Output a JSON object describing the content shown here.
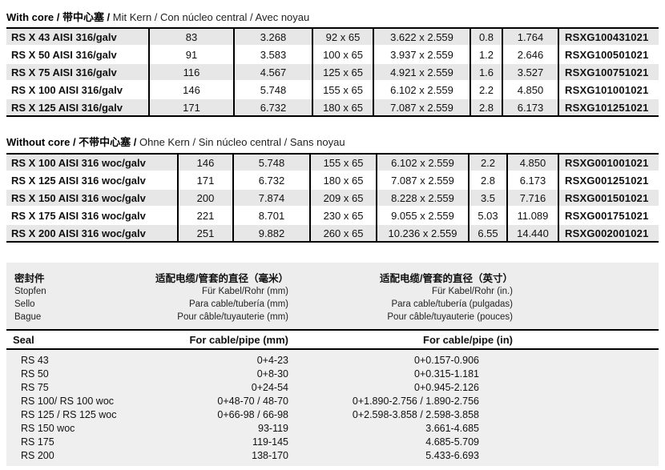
{
  "with_core": {
    "title_parts": [
      "With core",
      " / 带中心塞 / ",
      "Mit Kern / Con núcleo central / Avec noyau"
    ],
    "rows": [
      [
        "RS X 43 AISI 316/galv",
        "83",
        "3.268",
        "92 x 65",
        "3.622 x 2.559",
        "0.8",
        "1.764",
        "RSXG100431021"
      ],
      [
        "RS X 50 AISI 316/galv",
        "91",
        "3.583",
        "100 x 65",
        "3.937 x 2.559",
        "1.2",
        "2.646",
        "RSXG100501021"
      ],
      [
        "RS X 75 AISI 316/galv",
        "116",
        "4.567",
        "125 x 65",
        "4.921 x 2.559",
        "1.6",
        "3.527",
        "RSXG100751021"
      ],
      [
        "RS X 100 AISI 316/galv",
        "146",
        "5.748",
        "155 x 65",
        "6.102 x 2.559",
        "2.2",
        "4.850",
        "RSXG101001021"
      ],
      [
        "RS X 125 AISI 316/galv",
        "171",
        "6.732",
        "180 x 65",
        "7.087 x 2.559",
        "2.8",
        "6.173",
        "RSXG101251021"
      ]
    ]
  },
  "without_core": {
    "title_parts": [
      "Without core",
      " / 不带中心塞 / ",
      "Ohne Kern / Sin núcleo central / Sans noyau"
    ],
    "rows": [
      [
        "RS X 100 AISI 316 woc/galv",
        "146",
        "5.748",
        "155 x 65",
        "6.102 x 2.559",
        "2.2",
        "4.850",
        "RSXG001001021"
      ],
      [
        "RS X 125 AISI 316 woc/galv",
        "171",
        "6.732",
        "180 x 65",
        "7.087 x 2.559",
        "2.8",
        "6.173",
        "RSXG001251021"
      ],
      [
        "RS X 150 AISI 316 woc/galv",
        "200",
        "7.874",
        "209 x 65",
        "8.228 x 2.559",
        "3.5",
        "7.716",
        "RSXG001501021"
      ],
      [
        "RS X 175 AISI 316 woc/galv",
        "221",
        "8.701",
        "230 x 65",
        "9.055 x 2.559",
        "5.03",
        "11.089",
        "RSXG001751021"
      ],
      [
        "RS X 200 AISI 316 woc/galv",
        "251",
        "9.882",
        "260 x 65",
        "10.236 x 2.559",
        "6.55",
        "14.440",
        "RSXG002001021"
      ]
    ]
  },
  "seal_section": {
    "col1_lines": [
      "密封件",
      "Stopfen",
      "Sello",
      "Bague"
    ],
    "mm_lines": [
      "适配电缆/管套的直径（毫米）",
      "Für Kabel/Rohr (mm)",
      "Para cable/tubería (mm)",
      "Pour câble/tuyauterie (mm)"
    ],
    "in_lines": [
      "适配电缆/管套的直径（英寸）",
      "Für Kabel/Rohr (in.)",
      "Para cable/tubería (pulgadas)",
      "Pour câble/tuyauterie (pouces)"
    ],
    "header_row": [
      "Seal",
      "For cable/pipe (mm)",
      "For cable/pipe (in)"
    ],
    "rows": [
      [
        "RS 43",
        "0+4-23",
        "0+0.157-0.906"
      ],
      [
        "RS 50",
        "0+8-30",
        "0+0.315-1.181"
      ],
      [
        "RS 75",
        "0+24-54",
        "0+0.945-2.126"
      ],
      [
        "RS 100/ RS 100 woc",
        "0+48-70 / 48-70",
        "0+1.890-2.756 / 1.890-2.756"
      ],
      [
        "RS 125 / RS 125 woc",
        "0+66-98 / 66-98",
        "0+2.598-3.858 / 2.598-3.858"
      ],
      [
        "RS 150 woc",
        "93-119",
        "3.661-4.685"
      ],
      [
        "RS 175",
        "119-145",
        "4.685-5.709"
      ],
      [
        "RS 200",
        "138-170",
        "5.433-6.693"
      ]
    ]
  },
  "colors": {
    "stripe": "#e7e7e7",
    "panel": "#efefef",
    "rule": "#000000"
  }
}
